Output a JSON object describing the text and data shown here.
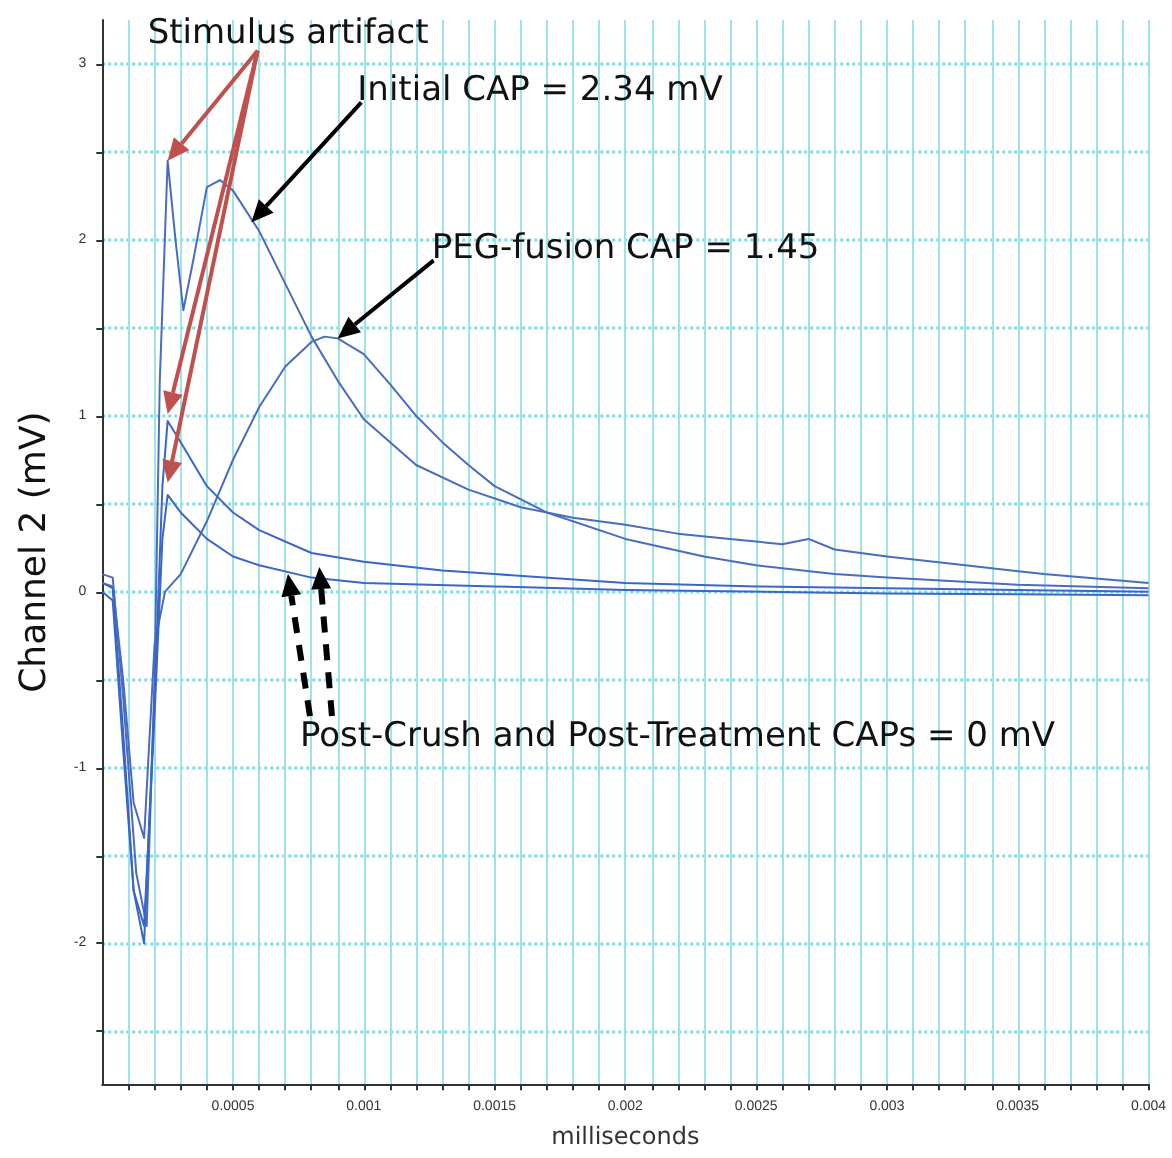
{
  "chart_data": {
    "type": "line",
    "xlabel": "milliseconds",
    "ylabel": "Channel 2 (mV)",
    "xlim": [
      0,
      0.004
    ],
    "ylim": [
      -2.8,
      3.25
    ],
    "xticks": [
      {
        "value": 0.0001,
        "label": null
      },
      {
        "value": 0.0002,
        "label": null
      },
      {
        "value": 0.0003,
        "label": null
      },
      {
        "value": 0.0004,
        "label": null
      },
      0.0005,
      {
        "value": 0.0006,
        "label": null
      },
      {
        "value": 0.0007,
        "label": null
      },
      {
        "value": 0.0008,
        "label": null
      },
      {
        "value": 0.0009,
        "label": null
      },
      0.001,
      {
        "value": 0.0011,
        "label": null
      },
      {
        "value": 0.0012,
        "label": null
      },
      {
        "value": 0.0013,
        "label": null
      },
      {
        "value": 0.0014,
        "label": null
      },
      0.0015,
      {
        "value": 0.0016,
        "label": null
      },
      {
        "value": 0.0017,
        "label": null
      },
      {
        "value": 0.0018,
        "label": null
      },
      {
        "value": 0.0019,
        "label": null
      },
      0.002,
      {
        "value": 0.0021,
        "label": null
      },
      {
        "value": 0.0022,
        "label": null
      },
      {
        "value": 0.0023,
        "label": null
      },
      {
        "value": 0.0024,
        "label": null
      },
      0.0025,
      {
        "value": 0.0026,
        "label": null
      },
      {
        "value": 0.0027,
        "label": null
      },
      {
        "value": 0.0028,
        "label": null
      },
      {
        "value": 0.0029,
        "label": null
      },
      0.003,
      {
        "value": 0.0031,
        "label": null
      },
      {
        "value": 0.0032,
        "label": null
      },
      {
        "value": 0.0033,
        "label": null
      },
      {
        "value": 0.0034,
        "label": null
      },
      0.0035,
      {
        "value": 0.0036,
        "label": null
      },
      {
        "value": 0.0037,
        "label": null
      },
      {
        "value": 0.0038,
        "label": null
      },
      {
        "value": 0.0039,
        "label": null
      },
      0.004
    ],
    "yticks": [
      {
        "value": -2.5,
        "label": null
      },
      -2,
      {
        "value": -1.5,
        "label": null
      },
      -1,
      {
        "value": -0.5,
        "label": null
      },
      0,
      {
        "value": 0.5,
        "label": null
      },
      1,
      {
        "value": 1.5,
        "label": null
      },
      2,
      {
        "value": 2.5,
        "label": null
      },
      3
    ],
    "grid": true,
    "marker": "none",
    "line_style": "solid",
    "annotations": [
      "Stimulus artifact",
      "Initial CAP = 2.34 mV",
      "PEG-fusion CAP = 1.45",
      "Post-Crush and Post-Treatment CAPs = 0 mV"
    ],
    "series": [
      {
        "color": "#4a6cc0",
        "x": [
          0,
          4e-05,
          8e-05,
          0.00013,
          0.00017,
          0.0002,
          0.00022,
          0.00025,
          0.00028,
          0.00031,
          0.00035,
          0.0004,
          0.00045,
          0.0005,
          0.0006,
          0.0007,
          0.0008,
          0.0009,
          0.001,
          0.0012,
          0.0014,
          0.0016,
          0.0018,
          0.002,
          0.0022,
          0.0024,
          0.0026,
          0.0027,
          0.0028,
          0.003,
          0.0033,
          0.0036,
          0.004
        ],
        "values": [
          0.1,
          0.08,
          -0.6,
          -1.6,
          -1.9,
          -0.5,
          1.2,
          2.45,
          2.0,
          1.6,
          1.9,
          2.3,
          2.34,
          2.28,
          2.05,
          1.75,
          1.45,
          1.2,
          0.98,
          0.72,
          0.58,
          0.48,
          0.42,
          0.38,
          0.33,
          0.3,
          0.27,
          0.3,
          0.24,
          0.2,
          0.15,
          0.1,
          0.05
        ]
      },
      {
        "color": "#4a6cc0",
        "x": [
          0,
          4e-05,
          8e-05,
          0.00012,
          0.00016,
          0.0002,
          0.00024,
          0.0003,
          0.0004,
          0.0005,
          0.0006,
          0.0007,
          0.0008,
          0.00085,
          0.0009,
          0.001,
          0.0011,
          0.0012,
          0.0013,
          0.0014,
          0.0015,
          0.0017,
          0.002,
          0.0023,
          0.0025,
          0.0028,
          0.003,
          0.0035,
          0.004
        ],
        "values": [
          0.05,
          0.03,
          -0.5,
          -1.2,
          -1.4,
          -0.3,
          0.0,
          0.1,
          0.4,
          0.75,
          1.05,
          1.28,
          1.42,
          1.45,
          1.44,
          1.35,
          1.18,
          1.0,
          0.85,
          0.72,
          0.6,
          0.45,
          0.3,
          0.2,
          0.15,
          0.1,
          0.08,
          0.04,
          0.02
        ]
      },
      {
        "color": "#3a66c8",
        "x": [
          0,
          4e-05,
          8e-05,
          0.00012,
          0.00016,
          0.0002,
          0.00023,
          0.00025,
          0.0003,
          0.0004,
          0.0005,
          0.0006,
          0.0008,
          0.001,
          0.0013,
          0.0015,
          0.002,
          0.0025,
          0.003,
          0.0035,
          0.004
        ],
        "values": [
          0.05,
          0.02,
          -0.8,
          -1.7,
          -2.0,
          -0.6,
          0.6,
          0.97,
          0.85,
          0.6,
          0.45,
          0.35,
          0.22,
          0.17,
          0.12,
          0.1,
          0.05,
          0.03,
          0.02,
          0.01,
          0.0
        ]
      },
      {
        "color": "#3a66c8",
        "x": [
          0,
          4e-05,
          8e-05,
          0.00012,
          0.00016,
          0.0002,
          0.00023,
          0.00025,
          0.0003,
          0.0004,
          0.0005,
          0.0006,
          0.0008,
          0.001,
          0.0015,
          0.002,
          0.003,
          0.004
        ],
        "values": [
          0.0,
          -0.05,
          -0.9,
          -1.7,
          -1.9,
          -0.7,
          0.3,
          0.55,
          0.45,
          0.3,
          0.2,
          0.15,
          0.08,
          0.05,
          0.03,
          0.01,
          -0.01,
          -0.02
        ]
      }
    ]
  }
}
